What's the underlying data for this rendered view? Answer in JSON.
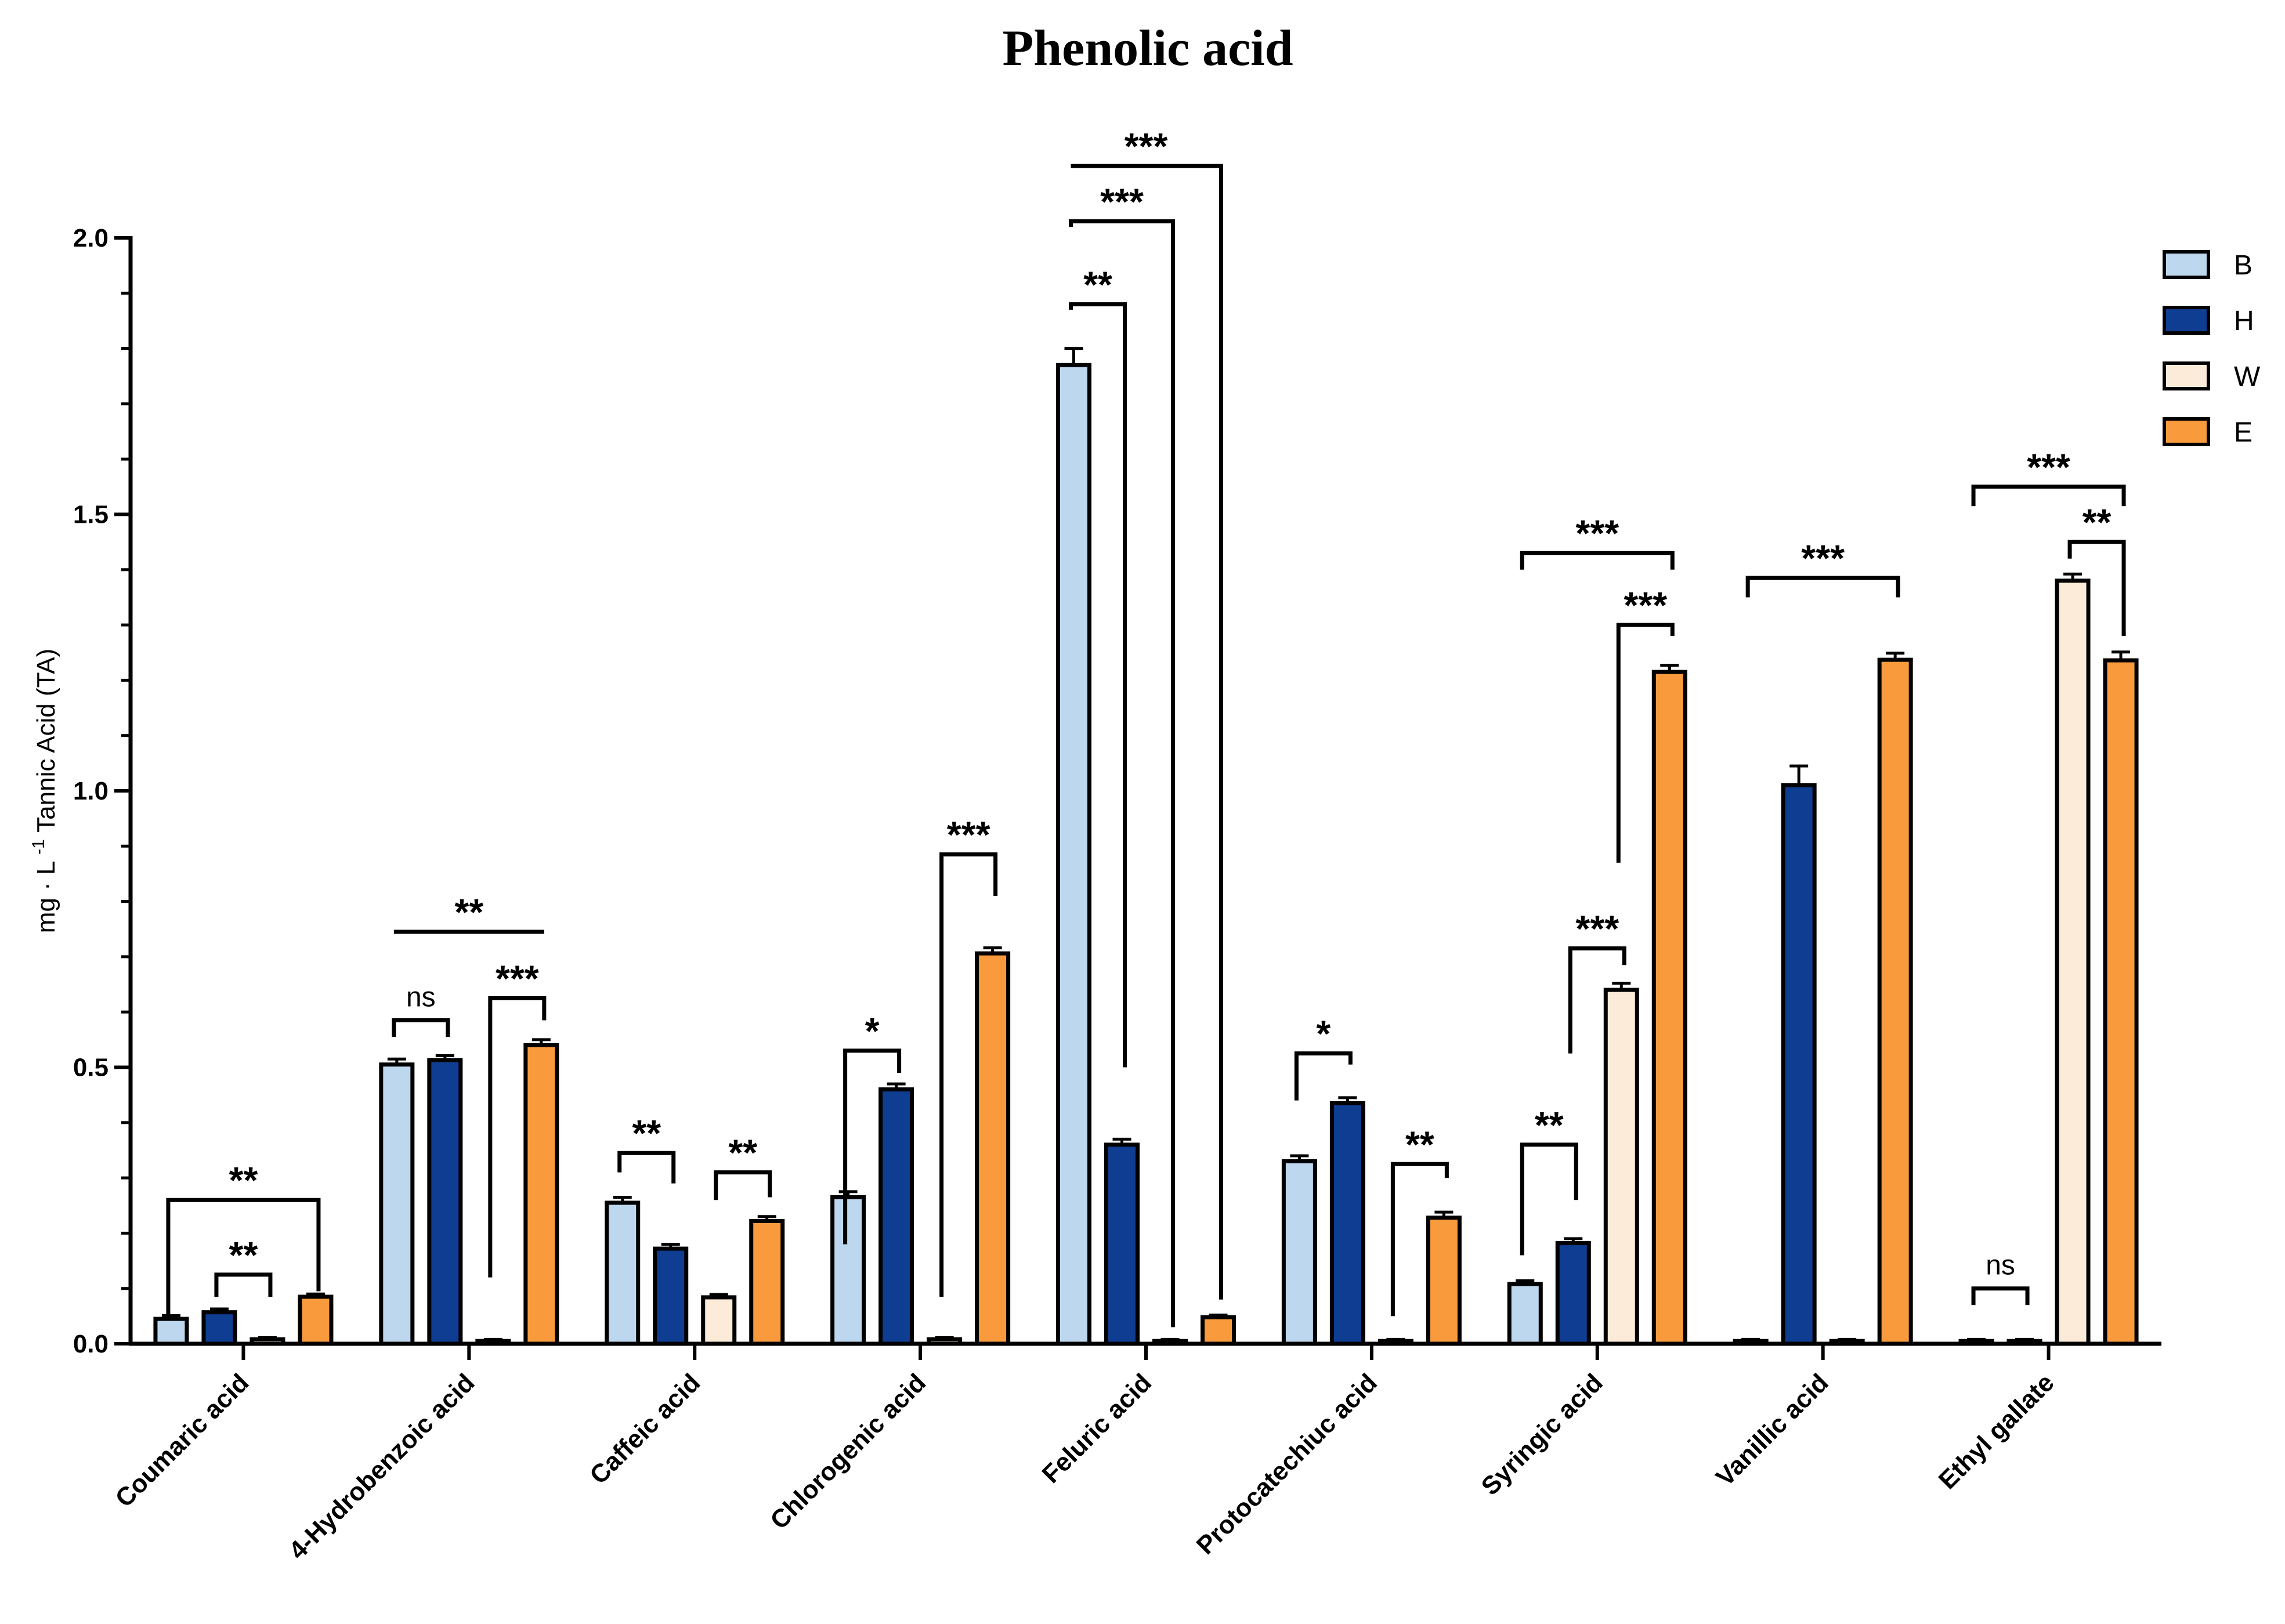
{
  "chart_data": {
    "type": "bar",
    "title": "Phenolic acid",
    "ylabel": "mg · L -1 Tannic Acid (TA)",
    "ylabel_parts": {
      "pre": "mg · L ",
      "sup": "-1",
      "post": " Tannic Acid (TA)"
    },
    "xlabel": "",
    "ylim": [
      0,
      2.0
    ],
    "yticks": [
      0.0,
      0.5,
      1.0,
      1.5,
      2.0
    ],
    "ytick_labels": [
      "0.0",
      "0.5",
      "1.0",
      "1.5",
      "2.0"
    ],
    "categories": [
      "Coumaric acid",
      "4-Hydrobenzoic acid",
      "Caffeic acid",
      "Chlorogenic acid",
      "Feluric acid",
      "Protocatechiuc acid",
      "Syringic acid",
      "Vanillic acid",
      "Ethyl gallate"
    ],
    "series": [
      {
        "name": "B",
        "color": "#BDD7EE",
        "values": [
          0.045,
          0.505,
          0.255,
          0.265,
          1.77,
          0.33,
          0.108,
          0.005,
          0.005
        ],
        "errors": [
          0.006,
          0.01,
          0.01,
          0.01,
          0.03,
          0.01,
          0.006,
          0.003,
          0.003
        ]
      },
      {
        "name": "H",
        "color": "#0E3D91",
        "values": [
          0.057,
          0.513,
          0.172,
          0.46,
          0.36,
          0.435,
          0.182,
          1.01,
          0.005
        ],
        "errors": [
          0.006,
          0.008,
          0.008,
          0.01,
          0.01,
          0.01,
          0.008,
          0.035,
          0.003
        ]
      },
      {
        "name": "W",
        "color": "#FDEBD9",
        "values": [
          0.008,
          0.005,
          0.084,
          0.008,
          0.005,
          0.005,
          0.64,
          0.005,
          1.38
        ],
        "errors": [
          0.003,
          0.003,
          0.005,
          0.003,
          0.003,
          0.003,
          0.012,
          0.003,
          0.012
        ]
      },
      {
        "name": "E",
        "color": "#F99B3D",
        "values": [
          0.085,
          0.54,
          0.222,
          0.706,
          0.048,
          0.228,
          1.215,
          1.237,
          1.236
        ],
        "errors": [
          0.005,
          0.01,
          0.008,
          0.01,
          0.004,
          0.01,
          0.012,
          0.012,
          0.015
        ]
      }
    ],
    "legend": {
      "position": "top-right",
      "entries": [
        "B",
        "H",
        "W",
        "E"
      ]
    },
    "significance": [
      {
        "cat": 0,
        "from": 0,
        "to": 3,
        "y": 0.26,
        "label": "**",
        "left_drop": 0.215,
        "right_drop": 0.165
      },
      {
        "cat": 0,
        "from": 1,
        "to": 2,
        "y": 0.125,
        "label": "**",
        "left_drop": 0.04,
        "right_drop": 0.04
      },
      {
        "cat": 1,
        "from": 0,
        "to": 3,
        "y": 0.745,
        "label": "**",
        "left_drop": 0,
        "right_drop": 0
      },
      {
        "cat": 1,
        "from": 0,
        "to": 1,
        "y": 0.585,
        "label": "ns",
        "left_drop": 0.03,
        "right_drop": 0.03
      },
      {
        "cat": 1,
        "from": 2,
        "to": 3,
        "y": 0.625,
        "label": "***",
        "left_drop": 0.505,
        "right_drop": 0.04
      },
      {
        "cat": 2,
        "from": 0,
        "to": 1,
        "y": 0.345,
        "label": "**",
        "left_drop": 0.035,
        "right_drop": 0.055
      },
      {
        "cat": 2,
        "from": 2,
        "to": 3,
        "y": 0.31,
        "label": "**",
        "left_drop": 0.05,
        "right_drop": 0.045
      },
      {
        "cat": 3,
        "from": 0,
        "to": 1,
        "y": 0.53,
        "label": "*",
        "left_drop": 0.35,
        "right_drop": 0.04
      },
      {
        "cat": 3,
        "from": 2,
        "to": 3,
        "y": 0.885,
        "label": "***",
        "left_drop": 0.8,
        "right_drop": 0.075
      },
      {
        "cat": 4,
        "from": 0,
        "to": 1,
        "y": 1.88,
        "label": "**",
        "left_drop": 0.01,
        "right_drop": 1.38
      },
      {
        "cat": 4,
        "from": 0,
        "to": 2,
        "y": 2.03,
        "label": "***",
        "left_drop": 0.01,
        "right_drop": 2.0
      },
      {
        "cat": 4,
        "from": 0,
        "to": 3,
        "y": 2.13,
        "label": "***",
        "left_drop": 0,
        "right_drop": 2.05
      },
      {
        "cat": 5,
        "from": 0,
        "to": 1,
        "y": 0.525,
        "label": "*",
        "left_drop": 0.085,
        "right_drop": 0.02
      },
      {
        "cat": 5,
        "from": 2,
        "to": 3,
        "y": 0.325,
        "label": "**",
        "left_drop": 0.275,
        "right_drop": 0.025
      },
      {
        "cat": 6,
        "from": 0,
        "to": 1,
        "y": 0.36,
        "label": "**",
        "left_drop": 0.2,
        "right_drop": 0.1
      },
      {
        "cat": 6,
        "from": 2,
        "to": 3,
        "y": 1.3,
        "label": "***",
        "left_drop": 0.43,
        "right_drop": 0.02
      },
      {
        "cat": 6,
        "from": 1,
        "to": 2,
        "y": 0.715,
        "label": "***",
        "left_drop": 0.19,
        "right_drop": 0.03
      },
      {
        "cat": 6,
        "from": 0,
        "to": 3,
        "y": 1.43,
        "label": "***",
        "left_drop": 0.03,
        "right_drop": 0.03
      },
      {
        "cat": 7,
        "from": 0,
        "to": 3,
        "y": 1.385,
        "label": "***",
        "left_drop": 0.035,
        "right_drop": 0.035
      },
      {
        "cat": 8,
        "from": 0,
        "to": 3,
        "y": 1.55,
        "label": "***",
        "left_drop": 0.035,
        "right_drop": 0.035
      },
      {
        "cat": 8,
        "from": 2,
        "to": 3,
        "y": 1.45,
        "label": "**",
        "left_drop": 0.03,
        "right_drop": 0.17
      },
      {
        "cat": 8,
        "from": 0,
        "to": 1,
        "y": 0.1,
        "label": "ns",
        "left_drop": 0.03,
        "right_drop": 0.03
      }
    ]
  }
}
